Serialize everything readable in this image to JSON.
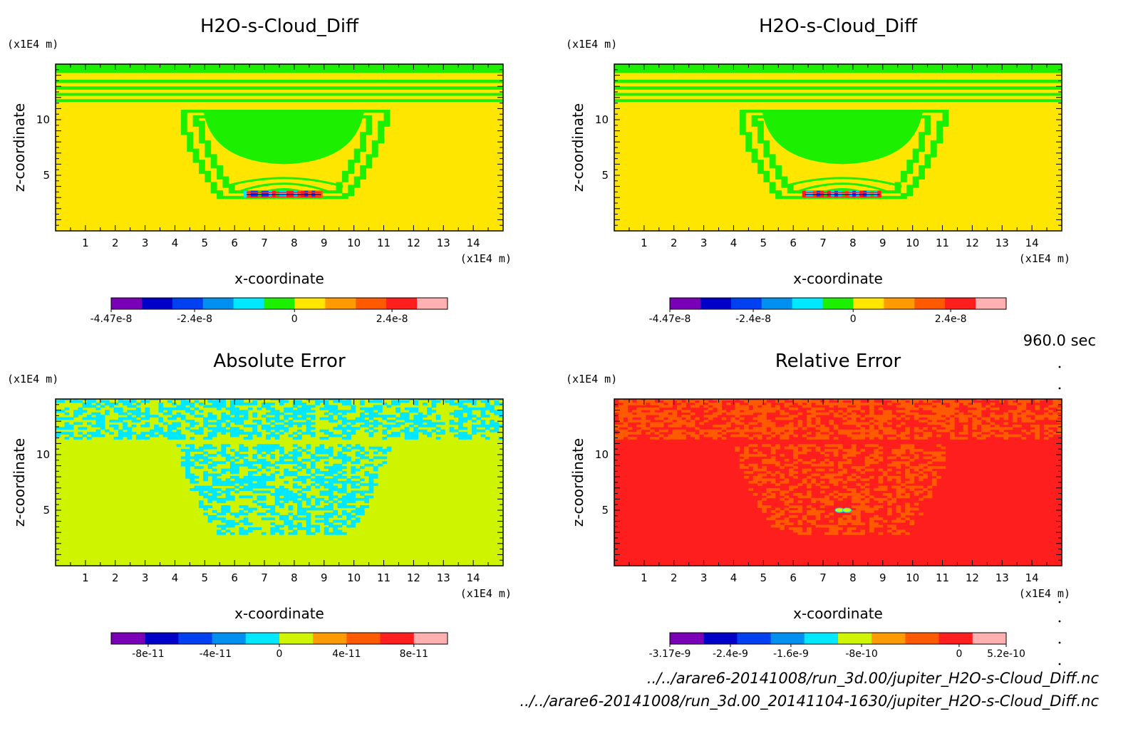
{
  "chart_data": [
    {
      "type": "heatmap",
      "title": "H2O-s-Cloud_Diff",
      "xlabel": "x-coordinate",
      "ylabel": "z-coordinate",
      "x_unit": "(x1E4 m)",
      "y_unit": "(x1E4 m)",
      "xlim": [
        0,
        15
      ],
      "ylim": [
        0,
        15
      ],
      "x_ticks": [
        "1",
        "2",
        "3",
        "4",
        "5",
        "6",
        "7",
        "8",
        "9",
        "10",
        "11",
        "12",
        "13",
        "14"
      ],
      "y_ticks": [
        "5",
        "10"
      ],
      "colors": [
        "#7a00b8",
        "#0000c8",
        "#0040f0",
        "#0090f0",
        "#00e8ff",
        "#1cf000",
        "#ffe600",
        "#ff9a00",
        "#ff5a00",
        "#ff1e1e",
        "#ffb0b0"
      ],
      "colorbar_labels": [
        "-4.47e-8",
        "-2.4e-8",
        "0",
        "2.4e-8"
      ],
      "field": "mostly 0 (yellow); green cloud region 0 to negative small values centred near x=7.5, z=3-11; dipole near z=3"
    },
    {
      "type": "heatmap",
      "title": "H2O-s-Cloud_Diff",
      "xlabel": "x-coordinate",
      "ylabel": "z-coordinate",
      "x_unit": "(x1E4 m)",
      "y_unit": "(x1E4 m)",
      "xlim": [
        0,
        15
      ],
      "ylim": [
        0,
        15
      ],
      "x_ticks": [
        "1",
        "2",
        "3",
        "4",
        "5",
        "6",
        "7",
        "8",
        "9",
        "10",
        "11",
        "12",
        "13",
        "14"
      ],
      "y_ticks": [
        "5",
        "10"
      ],
      "colors": [
        "#7a00b8",
        "#0000c8",
        "#0040f0",
        "#0090f0",
        "#00e8ff",
        "#1cf000",
        "#ffe600",
        "#ff9a00",
        "#ff5a00",
        "#ff1e1e",
        "#ffb0b0"
      ],
      "colorbar_labels": [
        "-4.47e-8",
        "-2.4e-8",
        "0",
        "2.4e-8"
      ]
    },
    {
      "type": "heatmap",
      "title": "Absolute Error",
      "xlabel": "x-coordinate",
      "ylabel": "z-coordinate",
      "x_unit": "(x1E4 m)",
      "y_unit": "(x1E4 m)",
      "xlim": [
        0,
        15
      ],
      "ylim": [
        0,
        15
      ],
      "x_ticks": [
        "1",
        "2",
        "3",
        "4",
        "5",
        "6",
        "7",
        "8",
        "9",
        "10",
        "11",
        "12",
        "13",
        "14"
      ],
      "y_ticks": [
        "5",
        "10"
      ],
      "colors": [
        "#7a00b8",
        "#0000c8",
        "#0040f0",
        "#0090f0",
        "#00e8ff",
        "#cef400",
        "#ff9a00",
        "#ff5a00",
        "#ff1e1e",
        "#ffb0b0"
      ],
      "colorbar_labels": [
        "-8e-11",
        "-4e-11",
        "0",
        "4e-11",
        "8e-11"
      ]
    },
    {
      "type": "heatmap",
      "title": "Relative Error",
      "xlabel": "x-coordinate",
      "ylabel": "z-coordinate",
      "x_unit": "(x1E4 m)",
      "y_unit": "(x1E4 m)",
      "xlim": [
        0,
        15
      ],
      "ylim": [
        0,
        15
      ],
      "x_ticks": [
        "1",
        "2",
        "3",
        "4",
        "5",
        "6",
        "7",
        "8",
        "9",
        "10",
        "11",
        "12",
        "13",
        "14"
      ],
      "y_ticks": [
        "5",
        "10"
      ],
      "colors": [
        "#7a00b8",
        "#0000c8",
        "#0040f0",
        "#0090f0",
        "#00e8ff",
        "#cef400",
        "#ff9a00",
        "#ff5a00",
        "#ff1e1e",
        "#ffb0b0"
      ],
      "colorbar_labels": [
        "-3.17e-9",
        "-2.4e-9",
        "-1.6e-9",
        "-8e-10",
        "0",
        "5.2e-10"
      ]
    }
  ],
  "time_label": "960.0 sec",
  "footer": {
    "file1": "../../arare6-20141008/run_3d.00/jupiter_H2O-s-Cloud_Diff.nc",
    "file2": "../../arare6-20141008/run_3d.00_20141104-1630/jupiter_H2O-s-Cloud_Diff.nc"
  }
}
